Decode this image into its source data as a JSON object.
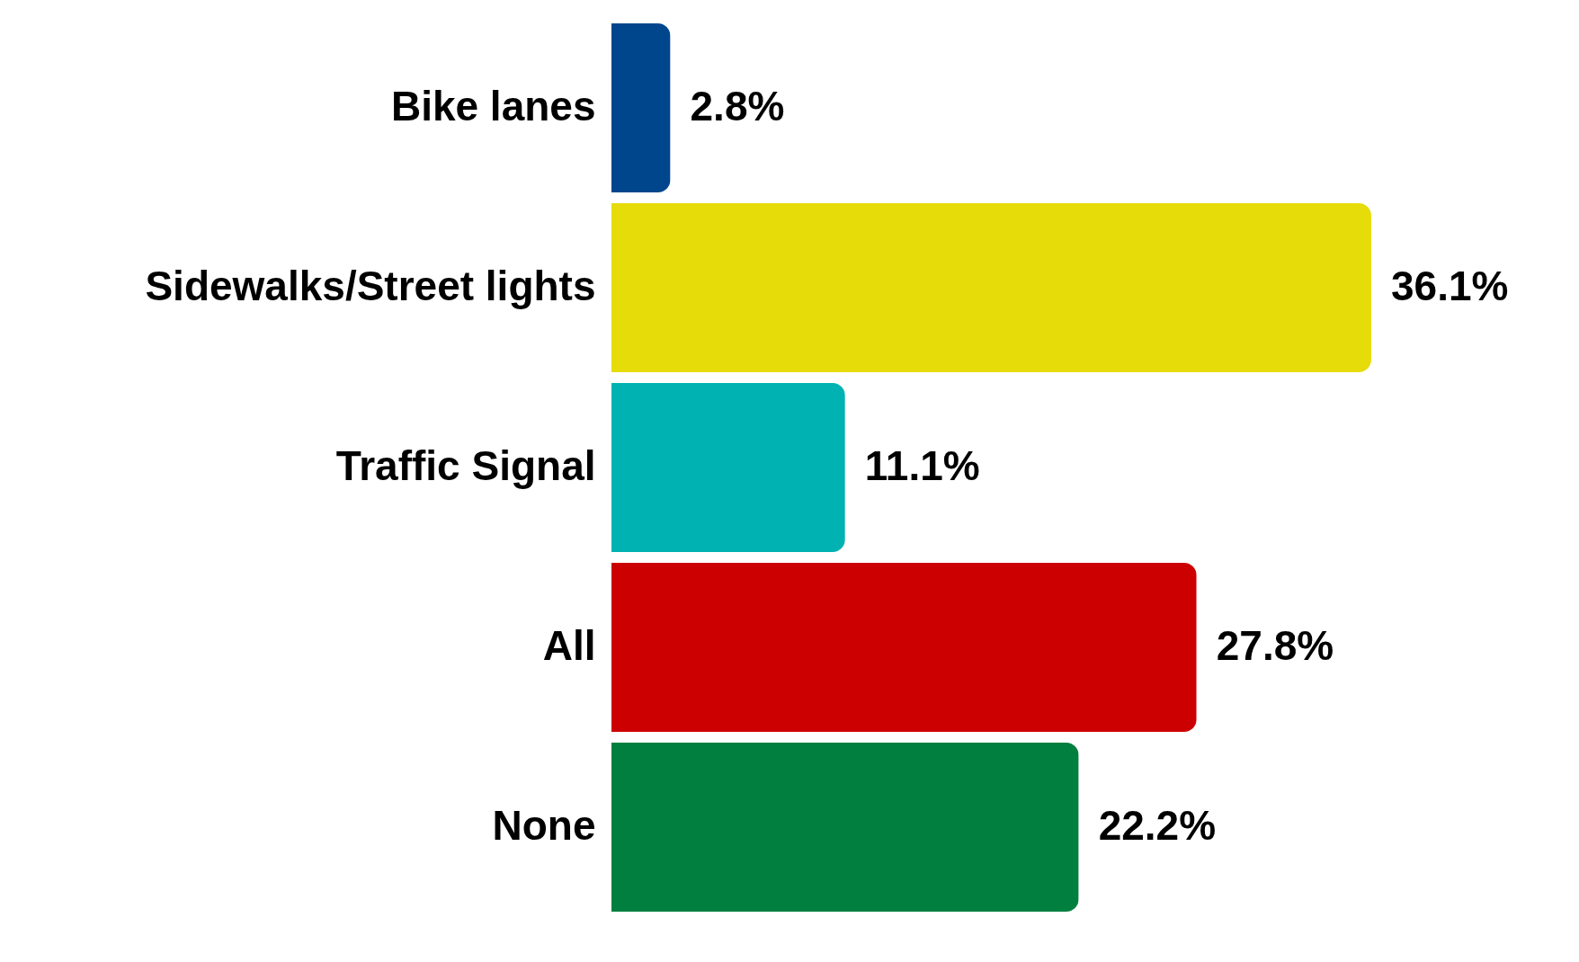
{
  "chart_data": {
    "type": "bar",
    "orientation": "horizontal",
    "categories": [
      "Bike lanes",
      "Sidewalks/Street lights",
      "Traffic Signal",
      "All",
      "None"
    ],
    "values": [
      2.8,
      36.1,
      11.1,
      27.8,
      22.2
    ],
    "colors": [
      "#00468c",
      "#e6dc0a",
      "#00b2b2",
      "#cc0000",
      "#007f3f"
    ],
    "value_labels": [
      "2.8%",
      "36.1%",
      "11.1%",
      "27.8%",
      "22.2%"
    ]
  }
}
